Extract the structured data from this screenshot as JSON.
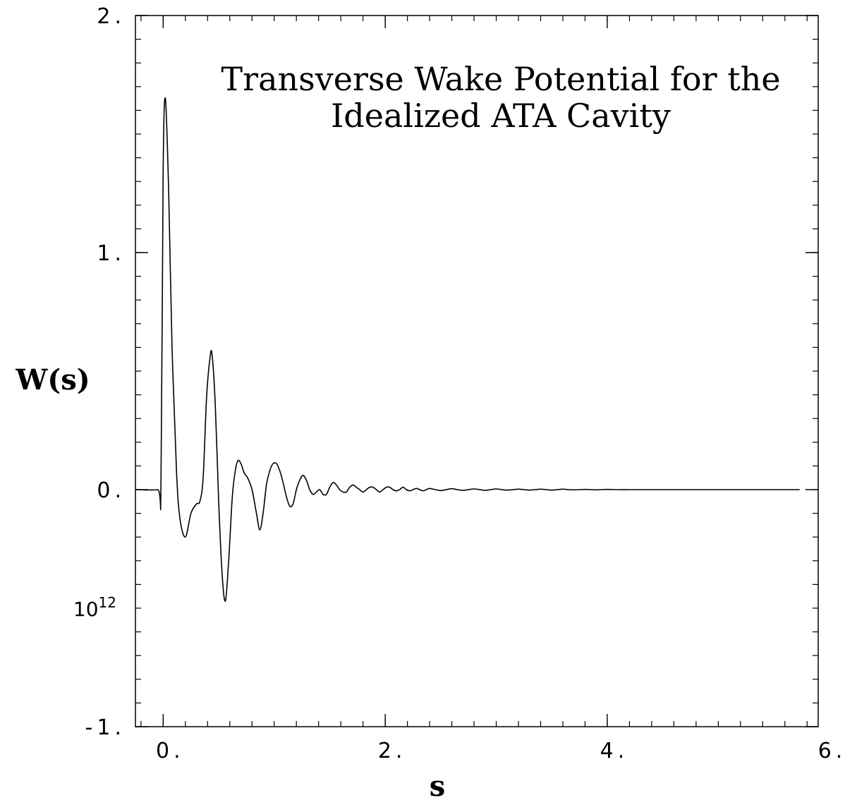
{
  "chart_data": {
    "type": "line",
    "title_lines": [
      "Transverse Wake Potential for the",
      "Idealized ATA Cavity"
    ],
    "xlabel": "s",
    "ylabel": "W(s)",
    "y_multiplier": {
      "base": "10",
      "exponent": "12"
    },
    "xlim": [
      -0.25,
      5.9
    ],
    "ylim": [
      -1,
      2
    ],
    "x_ticks": [
      {
        "value": 0,
        "label": "0."
      },
      {
        "value": 2,
        "label": "2."
      },
      {
        "value": 4,
        "label": "4."
      },
      {
        "value": 6,
        "label": "6."
      }
    ],
    "y_ticks": [
      {
        "value": -1,
        "label": "-1."
      },
      {
        "value": 0,
        "label": "0."
      },
      {
        "value": 1,
        "label": "1."
      },
      {
        "value": 2,
        "label": "2."
      }
    ],
    "x_minor_step": 0.2,
    "y_minor_step": 0.1,
    "grid": false,
    "series": [
      {
        "x": [
          -0.25,
          -0.05,
          -0.02,
          0.0,
          0.02,
          0.05,
          0.08,
          0.12,
          0.15,
          0.2,
          0.25,
          0.3,
          0.33,
          0.36,
          0.39,
          0.42,
          0.44,
          0.47,
          0.5,
          0.53,
          0.56,
          0.59,
          0.62,
          0.64,
          0.67,
          0.7,
          0.73,
          0.76,
          0.8,
          0.84,
          0.87,
          0.9,
          0.93,
          0.96,
          0.99,
          1.02,
          1.05,
          1.08,
          1.11,
          1.14,
          1.17,
          1.2,
          1.23,
          1.26,
          1.29,
          1.32,
          1.35,
          1.38,
          1.41,
          1.44,
          1.47,
          1.5,
          1.53,
          1.56,
          1.59,
          1.62,
          1.65,
          1.68,
          1.71,
          1.74,
          1.77,
          1.8,
          1.83,
          1.86,
          1.89,
          1.92,
          1.95,
          1.98,
          2.01,
          2.04,
          2.07,
          2.1,
          2.13,
          2.16,
          2.19,
          2.22,
          2.25,
          2.28,
          2.31,
          2.34,
          2.37,
          2.4,
          2.45,
          2.5,
          2.55,
          2.6,
          2.65,
          2.7,
          2.75,
          2.8,
          2.85,
          2.9,
          2.95,
          3.0,
          3.05,
          3.1,
          3.15,
          3.2,
          3.25,
          3.3,
          3.35,
          3.4,
          3.45,
          3.5,
          3.55,
          3.6,
          3.65,
          3.7,
          3.75,
          3.8,
          3.85,
          3.9,
          3.95,
          4.0,
          4.1,
          4.2,
          4.3,
          4.5,
          4.8,
          5.1,
          5.4,
          5.7,
          5.72
        ],
        "y": [
          0.0,
          0.0,
          0.02,
          1.35,
          1.65,
          1.25,
          0.6,
          0.08,
          -0.12,
          -0.2,
          -0.1,
          -0.06,
          -0.05,
          0.05,
          0.38,
          0.55,
          0.57,
          0.35,
          -0.05,
          -0.35,
          -0.47,
          -0.3,
          -0.05,
          0.05,
          0.12,
          0.11,
          0.07,
          0.05,
          0.0,
          -0.1,
          -0.17,
          -0.1,
          0.02,
          0.08,
          0.11,
          0.11,
          0.08,
          0.03,
          -0.03,
          -0.07,
          -0.06,
          0.0,
          0.04,
          0.06,
          0.04,
          0.0,
          -0.02,
          -0.01,
          0.0,
          -0.02,
          -0.02,
          0.01,
          0.03,
          0.02,
          0.0,
          -0.01,
          -0.01,
          0.01,
          0.02,
          0.01,
          0.0,
          -0.01,
          0.0,
          0.01,
          0.01,
          0.0,
          -0.01,
          0.0,
          0.01,
          0.01,
          0.0,
          -0.005,
          0.0,
          0.01,
          0.0,
          -0.005,
          0.0,
          0.005,
          0.0,
          -0.005,
          0.0,
          0.005,
          0.0,
          -0.004,
          0.0,
          0.004,
          0.0,
          -0.003,
          0.0,
          0.003,
          0.0,
          -0.003,
          0.0,
          0.003,
          0.0,
          -0.002,
          0.0,
          0.002,
          0.0,
          -0.002,
          0.0,
          0.002,
          0.0,
          -0.002,
          0.0,
          0.002,
          0.0,
          -0.001,
          0.0,
          0.001,
          0.0,
          -0.001,
          0.0,
          0.001,
          0.0,
          0.0,
          0.0,
          0.0,
          0.0,
          0.0,
          0.0,
          0.0,
          0.0
        ]
      }
    ]
  },
  "colors": {
    "background": "#ffffff",
    "line": "#000000",
    "axes": "#000000"
  }
}
